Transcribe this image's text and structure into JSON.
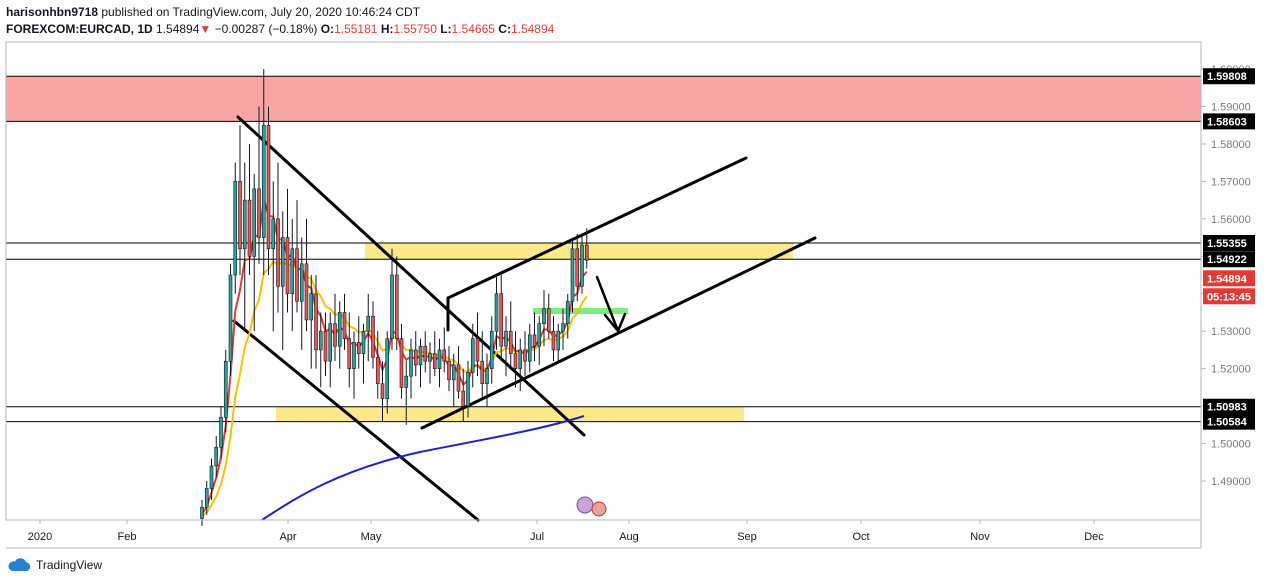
{
  "header": {
    "publisher": "harisonhbn9718",
    "published_text": "published on TradingView.com, July 20, 2020 10:46:24 CDT",
    "symbol": "FOREXCOM:EURCAD, 1D",
    "last": "1.54894",
    "change": "−0.00287 (−0.18%)",
    "o_label": "O:",
    "o_value": "1.55181",
    "h_label": "H:",
    "h_value": "1.55750",
    "l_label": "L:",
    "l_value": "1.54665",
    "c_label": "C:",
    "c_value": "1.54894"
  },
  "footer": {
    "brand": "TradingView"
  },
  "colors": {
    "up": "#26a69a",
    "down": "#ef5350",
    "candle": "#131722",
    "zone_red": "#f8a5a5",
    "zone_yellow": "#fbe98c",
    "zone_green": "#7ded7d",
    "ema_fast": "#e53935",
    "ema_slow": "#f5c400",
    "ma_long": "#1e22cc",
    "price_label_bg": "#000000",
    "current_price_bg": "#e53935"
  },
  "chart_data": {
    "type": "candlestick",
    "symbol": "FOREXCOM:EURCAD",
    "timeframe": "1D",
    "ylim": [
      1.48,
      1.604
    ],
    "y_ticks": [
      "1.49000",
      "1.50000",
      "1.51000",
      "1.52000",
      "1.53000",
      "1.54000",
      "1.55000",
      "1.56000",
      "1.57000",
      "1.58000",
      "1.59000",
      "1.60000"
    ],
    "x_ticks": [
      "2020",
      "Feb",
      "Apr",
      "May",
      "Jul",
      "Aug",
      "Sep",
      "Oct",
      "Nov",
      "Dec"
    ],
    "horizontal_levels": [
      "1.59808",
      "1.58603",
      "1.55355",
      "1.54922",
      "1.50983",
      "1.50584"
    ],
    "current_price": "1.54894",
    "countdown": "05:13:45",
    "grid": false,
    "candles_ohlc": [
      [
        1.48,
        1.485,
        1.478,
        1.483
      ],
      [
        1.483,
        1.49,
        1.481,
        1.488
      ],
      [
        1.488,
        1.496,
        1.485,
        1.494
      ],
      [
        1.494,
        1.502,
        1.491,
        1.499
      ],
      [
        1.499,
        1.51,
        1.496,
        1.507
      ],
      [
        1.507,
        1.525,
        1.503,
        1.522
      ],
      [
        1.522,
        1.548,
        1.518,
        1.545
      ],
      [
        1.545,
        1.575,
        1.54,
        1.57
      ],
      [
        1.57,
        1.585,
        1.545,
        1.552
      ],
      [
        1.552,
        1.575,
        1.53,
        1.565
      ],
      [
        1.565,
        1.58,
        1.545,
        1.55
      ],
      [
        1.55,
        1.572,
        1.53,
        1.568
      ],
      [
        1.568,
        1.59,
        1.548,
        1.555
      ],
      [
        1.555,
        1.6,
        1.545,
        1.585
      ],
      [
        1.585,
        1.59,
        1.545,
        1.552
      ],
      [
        1.552,
        1.57,
        1.53,
        1.56
      ],
      [
        1.56,
        1.575,
        1.535,
        1.542
      ],
      [
        1.542,
        1.562,
        1.525,
        1.555
      ],
      [
        1.555,
        1.568,
        1.535,
        1.54
      ],
      [
        1.54,
        1.56,
        1.53,
        1.552
      ],
      [
        1.552,
        1.565,
        1.535,
        1.538
      ],
      [
        1.538,
        1.555,
        1.525,
        1.548
      ],
      [
        1.548,
        1.56,
        1.53,
        1.533
      ],
      [
        1.533,
        1.545,
        1.52,
        1.54
      ],
      [
        1.54,
        1.545,
        1.52,
        1.525
      ],
      [
        1.525,
        1.535,
        1.515,
        1.53
      ],
      [
        1.53,
        1.535,
        1.518,
        1.522
      ],
      [
        1.522,
        1.535,
        1.515,
        1.532
      ],
      [
        1.532,
        1.54,
        1.522,
        1.526
      ],
      [
        1.526,
        1.538,
        1.52,
        1.535
      ],
      [
        1.535,
        1.54,
        1.525,
        1.528
      ],
      [
        1.528,
        1.535,
        1.515,
        1.52
      ],
      [
        1.52,
        1.53,
        1.512,
        1.527
      ],
      [
        1.527,
        1.534,
        1.52,
        1.524
      ],
      [
        1.524,
        1.532,
        1.516,
        1.53
      ],
      [
        1.53,
        1.54,
        1.522,
        1.534
      ],
      [
        1.534,
        1.538,
        1.52,
        1.523
      ],
      [
        1.523,
        1.53,
        1.512,
        1.516
      ],
      [
        1.516,
        1.522,
        1.506,
        1.512
      ],
      [
        1.512,
        1.53,
        1.508,
        1.528
      ],
      [
        1.528,
        1.552,
        1.525,
        1.545
      ],
      [
        1.545,
        1.55,
        1.525,
        1.528
      ],
      [
        1.528,
        1.532,
        1.512,
        1.515
      ],
      [
        1.515,
        1.522,
        1.505,
        1.518
      ],
      [
        1.518,
        1.528,
        1.512,
        1.525
      ],
      [
        1.525,
        1.53,
        1.518,
        1.521
      ],
      [
        1.521,
        1.528,
        1.515,
        1.526
      ],
      [
        1.526,
        1.53,
        1.519,
        1.522
      ],
      [
        1.522,
        1.527,
        1.516,
        1.524
      ],
      [
        1.524,
        1.53,
        1.518,
        1.52
      ],
      [
        1.52,
        1.528,
        1.515,
        1.525
      ],
      [
        1.525,
        1.531,
        1.519,
        1.522
      ],
      [
        1.522,
        1.526,
        1.514,
        1.517
      ],
      [
        1.517,
        1.524,
        1.51,
        1.521
      ],
      [
        1.521,
        1.526,
        1.512,
        1.514
      ],
      [
        1.514,
        1.52,
        1.506,
        1.51
      ],
      [
        1.51,
        1.522,
        1.507,
        1.519
      ],
      [
        1.519,
        1.532,
        1.515,
        1.528
      ],
      [
        1.528,
        1.535,
        1.518,
        1.522
      ],
      [
        1.522,
        1.53,
        1.512,
        1.516
      ],
      [
        1.516,
        1.524,
        1.51,
        1.52
      ],
      [
        1.52,
        1.534,
        1.516,
        1.53
      ],
      [
        1.53,
        1.545,
        1.525,
        1.54
      ],
      [
        1.54,
        1.546,
        1.522,
        1.526
      ],
      [
        1.526,
        1.534,
        1.518,
        1.53
      ],
      [
        1.53,
        1.538,
        1.52,
        1.524
      ],
      [
        1.524,
        1.53,
        1.515,
        1.52
      ],
      [
        1.52,
        1.528,
        1.514,
        1.525
      ],
      [
        1.525,
        1.53,
        1.518,
        1.522
      ],
      [
        1.522,
        1.532,
        1.519,
        1.529
      ],
      [
        1.529,
        1.535,
        1.522,
        1.526
      ],
      [
        1.526,
        1.534,
        1.521,
        1.532
      ],
      [
        1.532,
        1.541,
        1.526,
        1.536
      ],
      [
        1.536,
        1.54,
        1.528,
        1.53
      ],
      [
        1.53,
        1.534,
        1.522,
        1.525
      ],
      [
        1.525,
        1.532,
        1.522,
        1.53
      ],
      [
        1.53,
        1.536,
        1.525,
        1.532
      ],
      [
        1.532,
        1.54,
        1.528,
        1.538
      ],
      [
        1.538,
        1.555,
        1.535,
        1.552
      ],
      [
        1.552,
        1.556,
        1.538,
        1.542
      ],
      [
        1.542,
        1.556,
        1.54,
        1.553
      ],
      [
        1.553,
        1.5575,
        1.5467,
        1.54894
      ]
    ]
  }
}
